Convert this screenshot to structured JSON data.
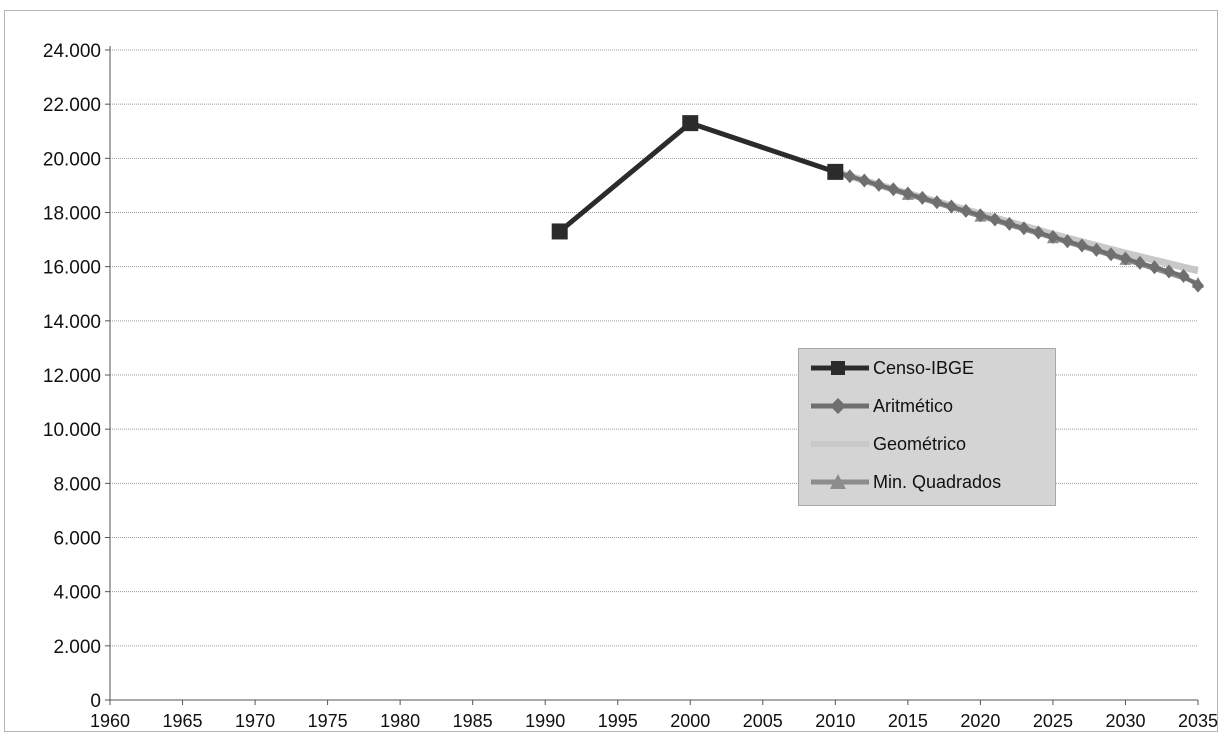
{
  "chart_data": {
    "type": "line",
    "title": "",
    "xlabel": "",
    "ylabel": "",
    "ylim": [
      0,
      24000
    ],
    "xlim": [
      1960,
      2035
    ],
    "yticks": [
      0,
      2000,
      4000,
      6000,
      8000,
      10000,
      12000,
      14000,
      16000,
      18000,
      20000,
      22000,
      24000
    ],
    "ytick_labels": [
      "0",
      "2.000",
      "4.000",
      "6.000",
      "8.000",
      "10.000",
      "12.000",
      "14.000",
      "16.000",
      "18.000",
      "20.000",
      "22.000",
      "24.000"
    ],
    "xticks": [
      1960,
      1965,
      1970,
      1975,
      1980,
      1985,
      1990,
      1995,
      2000,
      2005,
      2010,
      2015,
      2020,
      2025,
      2030,
      2035
    ],
    "xtick_labels": [
      "1960",
      "1965",
      "1970",
      "1975",
      "1980",
      "1985",
      "1990",
      "1995",
      "2000",
      "2005",
      "2010",
      "2015",
      "2020",
      "2025",
      "2030",
      "2035"
    ],
    "grid": "horizontal",
    "legend_position": "right-center",
    "series": [
      {
        "name": "Censo-IBGE",
        "color": "#2b2b2b",
        "marker": "square",
        "x": [
          1991,
          2000,
          2010
        ],
        "values": [
          17300,
          21300,
          19500
        ]
      },
      {
        "name": "Aritmético",
        "color": "#6f6f6f",
        "marker": "diamond",
        "x": [
          2010,
          2011,
          2012,
          2013,
          2014,
          2015,
          2016,
          2017,
          2018,
          2019,
          2020,
          2021,
          2022,
          2023,
          2024,
          2025,
          2026,
          2027,
          2028,
          2029,
          2030,
          2031,
          2032,
          2033,
          2034,
          2035
        ],
        "values": [
          19500,
          19340,
          19180,
          19020,
          18860,
          18700,
          18540,
          18380,
          18220,
          18060,
          17900,
          17740,
          17580,
          17420,
          17260,
          17100,
          16940,
          16780,
          16620,
          16460,
          16300,
          16140,
          15980,
          15820,
          15660,
          15300
        ]
      },
      {
        "name": "Geométrico",
        "color": "#c8c8c8",
        "marker": "none",
        "x": [
          2010,
          2015,
          2020,
          2025,
          2030,
          2035
        ],
        "values": [
          19500,
          18700,
          17950,
          17200,
          16500,
          15850
        ]
      },
      {
        "name": "Min. Quadrados",
        "color": "#8c8c8c",
        "marker": "triangle",
        "x": [
          2010,
          2015,
          2020,
          2025,
          2030,
          2035
        ],
        "values": [
          19500,
          18650,
          17850,
          17050,
          16250,
          15400
        ]
      }
    ]
  }
}
